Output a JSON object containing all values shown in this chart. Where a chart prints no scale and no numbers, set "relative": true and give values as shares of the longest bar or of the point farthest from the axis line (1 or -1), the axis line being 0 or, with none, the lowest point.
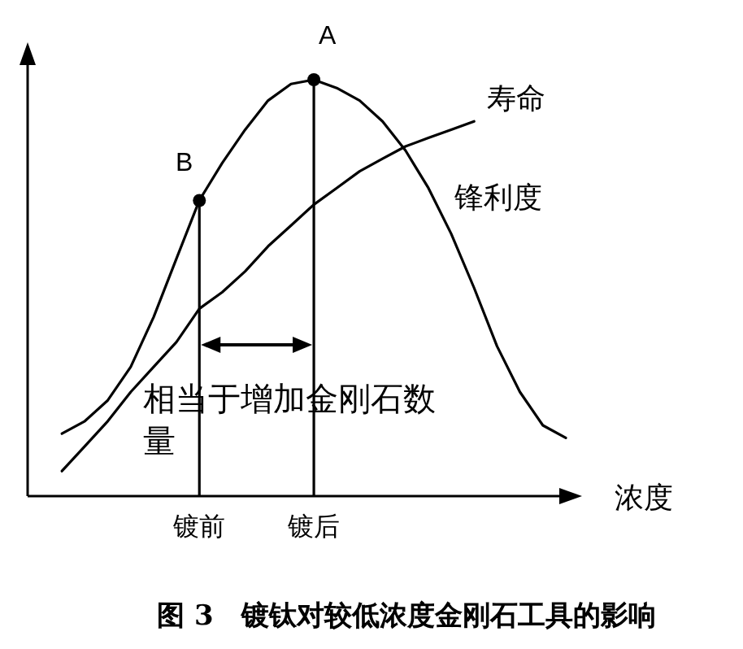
{
  "chart_data": {
    "type": "line",
    "title": "图 3　镀钛对较低浓度金刚石工具的影响",
    "xlabel": "浓度",
    "relative": true,
    "categories": [
      null,
      null,
      null,
      null,
      null,
      null,
      null,
      "镀前",
      null,
      null,
      null,
      null,
      "镀后",
      null,
      null,
      null,
      null,
      null,
      null,
      null,
      null,
      null,
      null,
      null
    ],
    "tick_labels": "x",
    "line_style": "solid",
    "series": [
      {
        "name": "锋利度",
        "color": "#000000",
        "values": [
          null,
          0.15,
          0.18,
          0.23,
          0.31,
          0.43,
          0.57,
          0.71,
          0.8,
          0.88,
          0.95,
          0.99,
          1.0,
          0.98,
          0.95,
          0.9,
          0.83,
          0.74,
          0.63,
          0.5,
          0.36,
          0.25,
          0.17,
          0.14
        ]
      },
      {
        "name": "寿命",
        "color": "#000000",
        "values": [
          null,
          0.06,
          0.12,
          0.18,
          0.25,
          0.31,
          0.37,
          0.45,
          0.49,
          0.54,
          0.6,
          0.65,
          0.7,
          0.74,
          0.78,
          0.81,
          0.84,
          0.86,
          0.88,
          0.9,
          null,
          null,
          null,
          null
        ]
      },
      {
        "type": "lollipop",
        "color": "#000000",
        "values": [
          null,
          null,
          null,
          null,
          null,
          null,
          null,
          0.71,
          null,
          null,
          null,
          null,
          1.0,
          null,
          null,
          null,
          null,
          null,
          null,
          null,
          null,
          null,
          null,
          null
        ]
      }
    ],
    "annotations": [
      {
        "text": "A",
        "x": "镀后",
        "y": 1.0
      },
      {
        "text": "B",
        "x": "镀前",
        "y": 0.71
      },
      "相当于增加金刚石数量"
    ]
  }
}
